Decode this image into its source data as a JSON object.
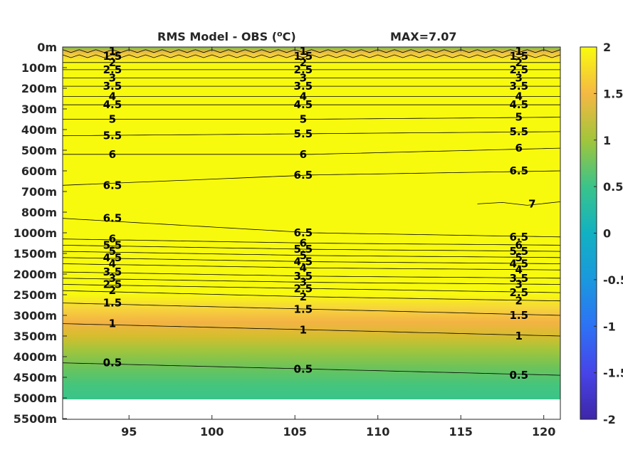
{
  "chart_data": {
    "type": "heatmap",
    "title_prefix": "RMS Model - OBS (",
    "title_sup": "o",
    "title_suffix": "C)",
    "max_label": "MAX=7.07",
    "xlim": [
      91,
      121
    ],
    "x_ticks": [
      95,
      100,
      105,
      110,
      115,
      120
    ],
    "y_ticks": [
      "0m",
      "100m",
      "200m",
      "300m",
      "400m",
      "500m",
      "600m",
      "700m",
      "800m",
      "1000m",
      "1500m",
      "2000m",
      "2500m",
      "3000m",
      "3500m",
      "4000m",
      "4500m",
      "5000m",
      "5500m"
    ],
    "colorbar": {
      "range": [
        -2,
        2
      ],
      "ticks": [
        "2",
        "1.5",
        "1",
        "0.5",
        "0",
        "-0.5",
        "-1",
        "-1.5",
        "-2"
      ]
    },
    "contours": [
      {
        "level": 1,
        "label": "1",
        "depths": [
          0.2,
          0.2,
          0.2
        ]
      },
      {
        "level": 1.5,
        "label": "1.5",
        "depths": [
          0.45,
          0.45,
          0.45
        ]
      },
      {
        "level": 2,
        "label": "2",
        "depths": [
          0.75,
          0.75,
          0.75
        ]
      },
      {
        "level": 2.5,
        "label": "2.5",
        "depths": [
          1.1,
          1.1,
          1.1
        ]
      },
      {
        "level": 3,
        "label": "3",
        "depths": [
          1.5,
          1.5,
          1.5
        ]
      },
      {
        "level": 3.5,
        "label": "3.5",
        "depths": [
          1.9,
          1.9,
          1.9
        ]
      },
      {
        "level": 4,
        "label": "4",
        "depths": [
          2.4,
          2.4,
          2.4
        ]
      },
      {
        "level": 4.5,
        "label": "4.5",
        "depths": [
          2.8,
          2.8,
          2.8
        ]
      },
      {
        "level": 5,
        "label": "5",
        "depths": [
          3.5,
          3.5,
          3.4
        ]
      },
      {
        "level": 5.5,
        "label": "5.5",
        "depths": [
          4.3,
          4.2,
          4.1
        ]
      },
      {
        "level": 6,
        "label": "6",
        "depths": [
          5.2,
          5.2,
          4.9
        ]
      },
      {
        "level": 6.5,
        "label": "6.5",
        "depths": [
          6.7,
          6.2,
          6.0
        ]
      },
      {
        "level": 7,
        "label": "7",
        "depths": [
          null,
          null,
          7.6
        ]
      },
      {
        "level": 6.5,
        "label": "6.5",
        "depths": [
          8.3,
          9.0,
          9.2
        ]
      },
      {
        "level": 6,
        "label": "6",
        "depths": [
          9.3,
          9.5,
          9.6
        ]
      },
      {
        "level": 5.5,
        "label": "5.5",
        "depths": [
          9.6,
          9.8,
          9.9
        ]
      },
      {
        "level": 5,
        "label": "5",
        "depths": [
          9.9,
          10.1,
          10.2
        ]
      },
      {
        "level": 4.5,
        "label": "4.5",
        "depths": [
          10.2,
          10.4,
          10.5
        ]
      },
      {
        "level": 4,
        "label": "4",
        "depths": [
          10.5,
          10.7,
          10.8
        ]
      },
      {
        "level": 3.5,
        "label": "3.5",
        "depths": [
          10.9,
          11.1,
          11.2
        ]
      },
      {
        "level": 3,
        "label": "3",
        "depths": [
          11.2,
          11.4,
          11.5
        ]
      },
      {
        "level": 2.5,
        "label": "2.5",
        "depths": [
          11.5,
          11.7,
          11.9
        ]
      },
      {
        "level": 2,
        "label": "2",
        "depths": [
          11.8,
          12.1,
          12.3
        ]
      },
      {
        "level": 1.5,
        "label": "1.5",
        "depths": [
          12.4,
          12.7,
          13.0
        ]
      },
      {
        "level": 1,
        "label": "1",
        "depths": [
          13.4,
          13.7,
          14.0
        ]
      },
      {
        "level": 0.5,
        "label": "0.5",
        "depths": [
          15.3,
          15.6,
          15.9
        ]
      }
    ]
  }
}
